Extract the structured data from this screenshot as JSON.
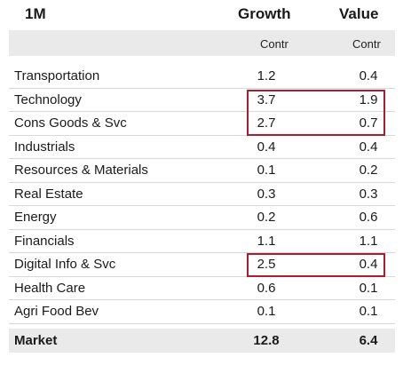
{
  "header": {
    "title": "1M",
    "growth": "Growth",
    "value": "Value"
  },
  "subheader": {
    "growth": "Contr",
    "value": "Contr"
  },
  "rows": [
    {
      "sector": "Transportation",
      "growth": "1.2",
      "value": "0.4"
    },
    {
      "sector": "Technology",
      "growth": "3.7",
      "value": "1.9"
    },
    {
      "sector": "Cons Goods & Svc",
      "growth": "2.7",
      "value": "0.7"
    },
    {
      "sector": "Industrials",
      "growth": "0.4",
      "value": "0.4"
    },
    {
      "sector": "Resources & Materials",
      "growth": "0.1",
      "value": "0.2"
    },
    {
      "sector": "Real Estate",
      "growth": "0.3",
      "value": "0.3"
    },
    {
      "sector": "Energy",
      "growth": "0.2",
      "value": "0.6"
    },
    {
      "sector": "Financials",
      "growth": "1.1",
      "value": "1.1"
    },
    {
      "sector": "Digital Info & Svc",
      "growth": "2.5",
      "value": "0.4"
    },
    {
      "sector": "Health Care",
      "growth": "0.6",
      "value": "0.1"
    },
    {
      "sector": "Agri Food Bev",
      "growth": "0.1",
      "value": "0.1"
    }
  ],
  "market": {
    "label": "Market",
    "growth": "12.8",
    "value": "6.4"
  },
  "colors": {
    "highlight": "#b01c2e",
    "band": "#eaeaea"
  }
}
